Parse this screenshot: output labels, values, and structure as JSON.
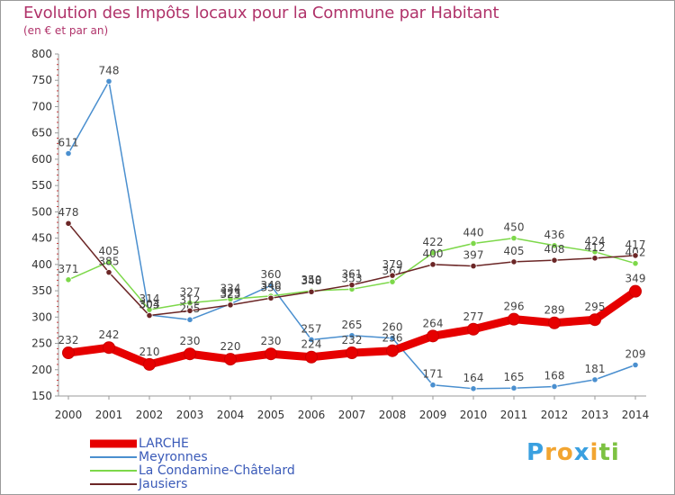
{
  "chart_data": {
    "type": "line",
    "title": "Evolution des Impôts locaux pour la Commune par Habitant",
    "subtitle": "(en € et par an)",
    "xlabel": "",
    "ylabel": "",
    "ylim": [
      150,
      800
    ],
    "yticks": [
      "150",
      "200",
      "250",
      "300",
      "350",
      "400",
      "450",
      "500",
      "550",
      "600",
      "650",
      "700",
      "750",
      "800"
    ],
    "x": [
      "2000",
      "2001",
      "2002",
      "2003",
      "2004",
      "2005",
      "2006",
      "2007",
      "2008",
      "2009",
      "2010",
      "2011",
      "2012",
      "2013",
      "2014"
    ],
    "series": [
      {
        "name": "Meyronnes",
        "color": "#4a8fcf",
        "values": [
          611,
          748,
          304,
          295,
          325,
          360,
          257,
          265,
          260,
          171,
          164,
          165,
          168,
          181,
          209
        ]
      },
      {
        "name": "La Condamine-Châtelard",
        "color": "#7dd84a",
        "values": [
          371,
          405,
          314,
          327,
          334,
          340,
          350,
          353,
          367,
          422,
          440,
          450,
          436,
          424,
          402
        ]
      },
      {
        "name": "Jausiers",
        "color": "#6b2626",
        "values": [
          478,
          385,
          303,
          312,
          323,
          336,
          348,
          361,
          379,
          400,
          397,
          405,
          408,
          412,
          417
        ]
      },
      {
        "name": "LARCHE",
        "color": "#e60000",
        "values": [
          232,
          242,
          210,
          230,
          220,
          230,
          224,
          232,
          236,
          264,
          277,
          296,
          289,
          295,
          349
        ]
      }
    ],
    "legend": [
      "LARCHE",
      "Meyronnes",
      "La Condamine-Châtelard",
      "Jausiers"
    ],
    "legend_position": "bottom-left",
    "grid": false
  },
  "logo": {
    "letters": [
      "P",
      "r",
      "o",
      "x",
      "i",
      "t",
      "i"
    ],
    "colors": [
      "#3aa0e0",
      "#f2a531",
      "#f2a531",
      "#3aa0e0",
      "#f2a531",
      "#7dc242",
      "#7dc242"
    ]
  }
}
